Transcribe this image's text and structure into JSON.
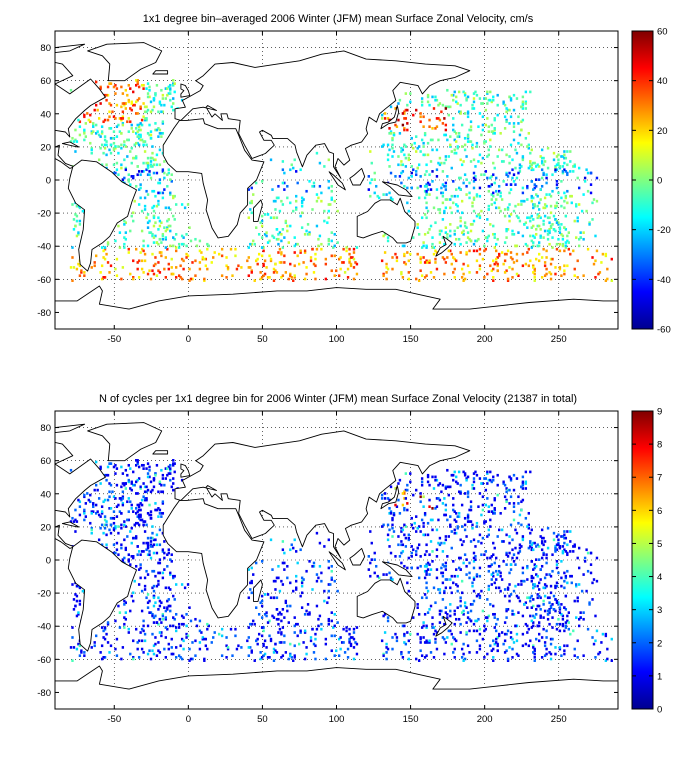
{
  "panels": [
    {
      "title": "1x1 degree bin–averaged 2006 Winter (JFM) mean Surface Zonal Velocity, cm/s",
      "xticks": [
        "-50",
        "0",
        "50",
        "100",
        "150",
        "200",
        "250"
      ],
      "yticks": [
        "80",
        "60",
        "40",
        "20",
        "0",
        "-20",
        "-40",
        "-60",
        "-80"
      ],
      "colorbar": {
        "ticks": [
          "60",
          "40",
          "20",
          "0",
          "-20",
          "-40",
          "-60"
        ],
        "range": [
          -60,
          60
        ],
        "colormap": "jet"
      }
    },
    {
      "title": "N of cycles per 1x1 degree bin for 2006 Winter (JFM) mean Surface Zonal Velocity (21387 in total)",
      "xticks": [
        "-50",
        "0",
        "50",
        "100",
        "150",
        "200",
        "250"
      ],
      "yticks": [
        "80",
        "60",
        "40",
        "20",
        "0",
        "-20",
        "-40",
        "-60",
        "-80"
      ],
      "colorbar": {
        "ticks": [
          "9",
          "8",
          "7",
          "6",
          "5",
          "4",
          "3",
          "2",
          "1",
          "0"
        ],
        "range": [
          0,
          9
        ],
        "colormap": "jet"
      }
    }
  ],
  "map": {
    "lon_range": [
      -90,
      290
    ],
    "lat_range": [
      -90,
      90
    ],
    "grid": "dotted",
    "coastline_color": "#000000"
  }
}
